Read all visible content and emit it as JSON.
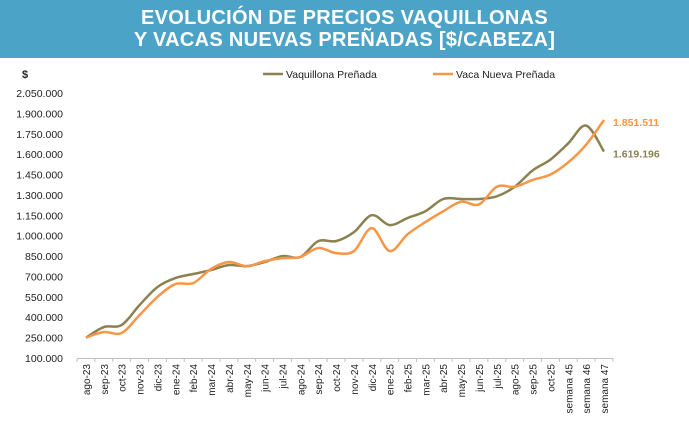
{
  "chart_data": {
    "type": "line",
    "title_line1": "EVOLUCIÓN DE PRECIOS VAQUILLONAS",
    "title_line2": "Y VACAS NUEVAS PREÑADAS [$/CABEZA]",
    "ylabel": "$",
    "xlabel": "",
    "ylim": [
      100000,
      2050000
    ],
    "yticks": [
      "100.000",
      "250.000",
      "400.000",
      "550.000",
      "700.000",
      "850.000",
      "1.000.000",
      "1.150.000",
      "1.300.000",
      "1.450.000",
      "1.600.000",
      "1.750.000",
      "1.900.000",
      "2.050.000"
    ],
    "categories": [
      "ago-23",
      "sep-23",
      "oct-23",
      "nov-23",
      "dic-23",
      "ene-24",
      "feb-24",
      "mar-24",
      "abr-24",
      "may-24",
      "jun-24",
      "jul-24",
      "ago-24",
      "sep-24",
      "oct-24",
      "nov-24",
      "dic-24",
      "ene-25",
      "feb-25",
      "mar-25",
      "abr-25",
      "may-25",
      "jun-25",
      "jul-25",
      "ago-25",
      "sep-25",
      "oct-25",
      "semana 45",
      "semana 46",
      "semana 47"
    ],
    "legend_position": "top",
    "grid": false,
    "series": [
      {
        "name": "Vaquillona Preñada",
        "color": "#8c8150",
        "end_label": "1.619.196",
        "values": [
          250000,
          328000,
          343000,
          490000,
          622000,
          688000,
          718000,
          747000,
          784000,
          776000,
          806000,
          850000,
          843000,
          960000,
          960000,
          1026000,
          1151000,
          1078000,
          1130000,
          1180000,
          1270000,
          1270000,
          1270000,
          1290000,
          1360000,
          1480000,
          1560000,
          1680000,
          1810000,
          1619196
        ]
      },
      {
        "name": "Vaca Nueva Preñada",
        "color": "#f79646",
        "end_label": "1.851.511",
        "values": [
          250000,
          291000,
          284000,
          416000,
          549000,
          644000,
          651000,
          755000,
          806000,
          776000,
          813000,
          835000,
          843000,
          909000,
          872000,
          887000,
          1056000,
          887000,
          1010000,
          1100000,
          1180000,
          1250000,
          1230000,
          1360000,
          1360000,
          1410000,
          1450000,
          1540000,
          1670000,
          1851511
        ]
      }
    ]
  }
}
